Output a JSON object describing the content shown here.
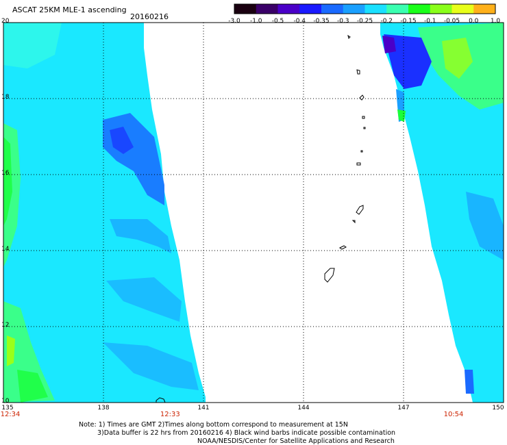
{
  "header": {
    "title": "ASCAT 25KM MLE-1 ascending",
    "date": "20160216"
  },
  "colorbar": {
    "ticks": [
      "-3.0",
      "-1.0",
      "-0.5",
      "-0.4",
      "-0.35",
      "-0.3",
      "-0.25",
      "-0.2",
      "-0.15",
      "-0.1",
      "-0.05",
      "0.0",
      "1.0"
    ],
    "colors": [
      "#1a0010",
      "#3a0068",
      "#4a00c8",
      "#1a1aff",
      "#1a6aff",
      "#1aa0ff",
      "#1ae0ff",
      "#3affb0",
      "#1aff1a",
      "#8aff1a",
      "#e8ff1a",
      "#ffb01a",
      "#ff4a1a"
    ]
  },
  "map": {
    "lat_labels": [
      "20",
      "18",
      "16",
      "14",
      "12",
      "10"
    ],
    "lon_labels": [
      "135",
      "138",
      "141",
      "144",
      "147",
      "150"
    ],
    "times": [
      {
        "lon": 135,
        "label": "12:34"
      },
      {
        "lon": 140,
        "label": "12:33"
      },
      {
        "lon": 148.5,
        "label": "10:54"
      }
    ],
    "swath_colors": {
      "base": "#1ae8ff",
      "light": "#3affe0",
      "blue": "#1a6aff",
      "deep_blue": "#1a30ff",
      "green": "#3aff8a",
      "bright_green": "#1aff3a",
      "yellowgreen": "#9aff1a"
    }
  },
  "footer": {
    "line1": "Note: 1) Times are GMT 2)Times along bottom correspond to measurement at 15N",
    "line2": "3)Data buffer is 22 hrs from 20160216 4) Black wind barbs indicate possible contamination",
    "line3": "NOAA/NESDIS/Center for Satellite Applications and Research"
  }
}
